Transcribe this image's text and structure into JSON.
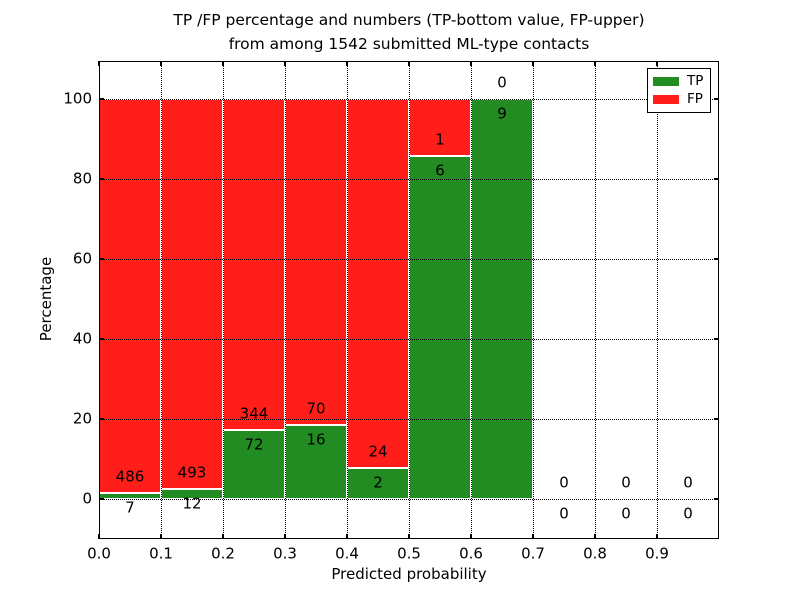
{
  "title": {
    "line1": "TP /FP percentage and numbers (TP-bottom value, FP-upper)",
    "line2": "from among 1542 submitted ML-type contacts"
  },
  "axes": {
    "xlabel": "Predicted probability",
    "ylabel": "Percentage",
    "x_ticks": [
      "0.0",
      "0.1",
      "0.2",
      "0.3",
      "0.4",
      "0.5",
      "0.6",
      "0.7",
      "0.8",
      "0.9"
    ],
    "y_ticks": [
      "0",
      "20",
      "40",
      "60",
      "80",
      "100"
    ]
  },
  "colors": {
    "tp": "#228b22",
    "fp": "#ff1e1a",
    "grid": "#000000",
    "text": "#000000",
    "background": "#ffffff"
  },
  "legend": {
    "entries": [
      {
        "label": "TP",
        "color": "#228b22"
      },
      {
        "label": "FP",
        "color": "#ff1e1a"
      }
    ]
  },
  "chart_data": {
    "type": "bar",
    "stacked": true,
    "normalized": "each non-empty bin scaled to 100 percent, TP on bottom, FP on top",
    "title": "TP /FP percentage and numbers (TP-bottom value, FP-upper) from among 1542 submitted ML-type contacts",
    "xlabel": "Predicted probability",
    "ylabel": "Percentage",
    "total_submitted": 1542,
    "xlim": [
      0.0,
      1.0
    ],
    "ylim": [
      -10,
      110
    ],
    "grid": true,
    "legend_position": "upper right",
    "bin_edges": [
      0.0,
      0.1,
      0.2,
      0.3,
      0.4,
      0.5,
      0.6,
      0.7,
      0.8,
      0.9,
      1.0
    ],
    "series": [
      {
        "name": "TP",
        "values": [
          7,
          12,
          72,
          16,
          2,
          6,
          9,
          0,
          0,
          0
        ]
      },
      {
        "name": "FP",
        "values": [
          486,
          493,
          344,
          70,
          24,
          1,
          0,
          0,
          0,
          0
        ]
      }
    ]
  }
}
